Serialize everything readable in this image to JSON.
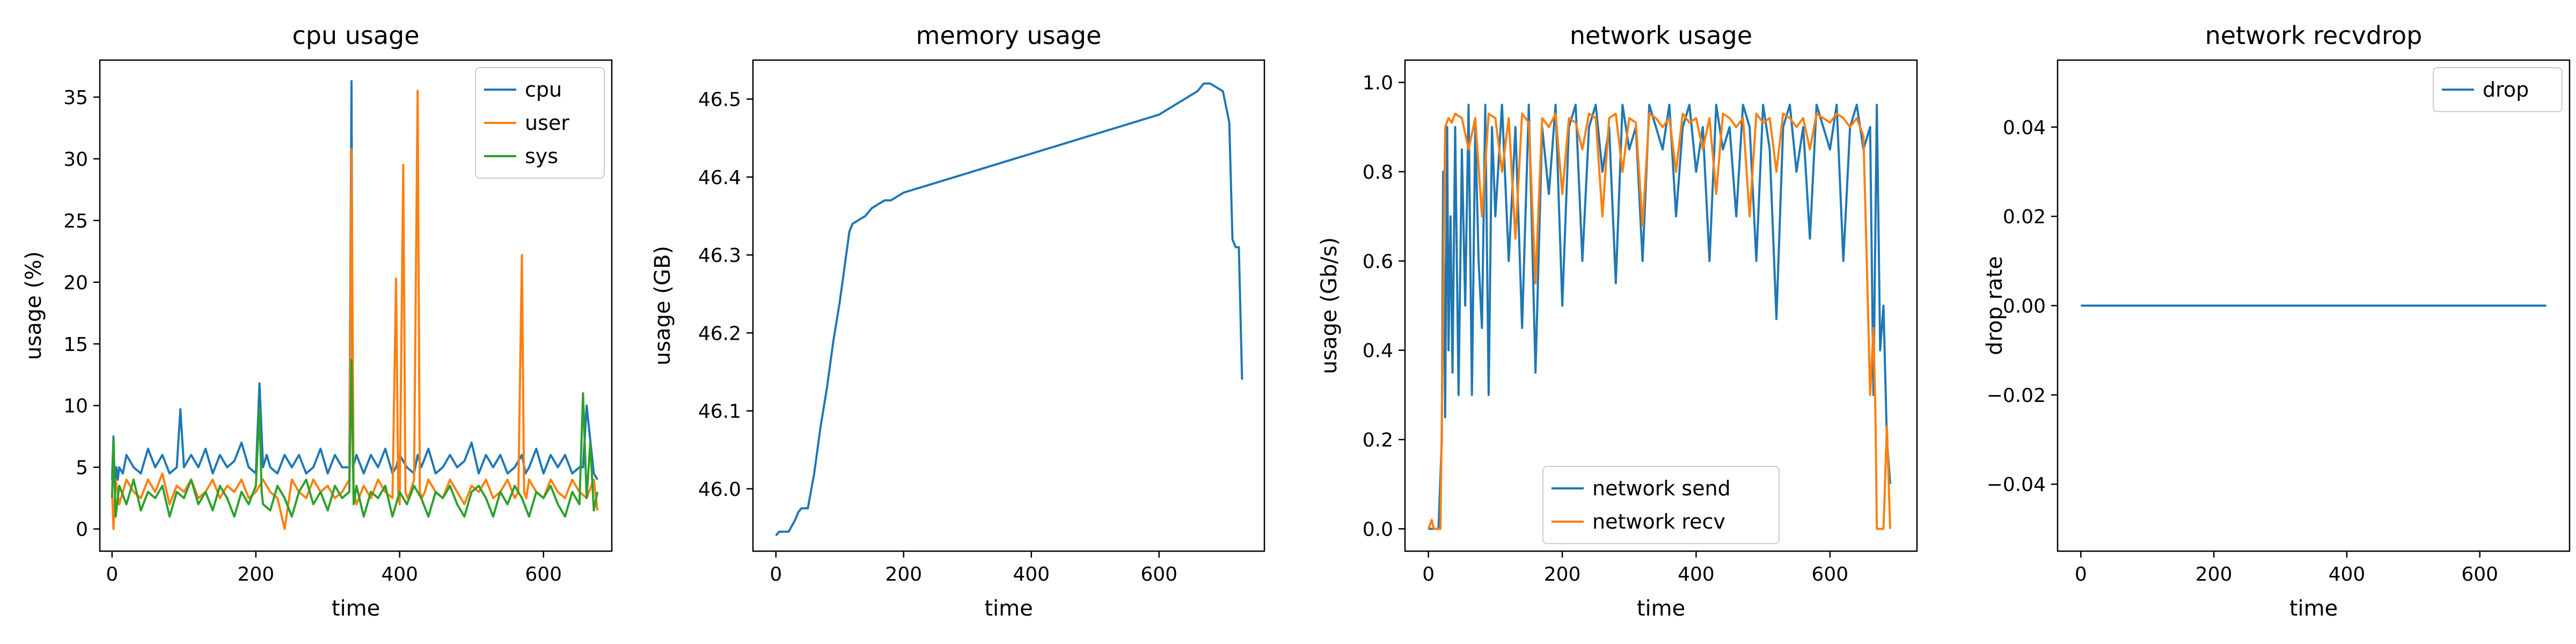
{
  "chart_data": [
    {
      "type": "line",
      "title": "cpu usage",
      "xlabel": "time",
      "ylabel": "usage (%)",
      "xlim": [
        -17,
        695
      ],
      "ylim": [
        -1.8,
        38
      ],
      "xticks": [
        0,
        200,
        400,
        600
      ],
      "yticks": [
        0,
        5,
        10,
        15,
        20,
        25,
        30,
        35
      ],
      "legend": "top-right",
      "series": [
        {
          "name": "cpu",
          "color": "#1f77b4",
          "x": [
            0,
            2,
            4,
            6,
            8,
            10,
            15,
            20,
            30,
            40,
            50,
            60,
            70,
            80,
            90,
            95,
            100,
            110,
            120,
            130,
            140,
            150,
            160,
            170,
            180,
            190,
            200,
            205,
            210,
            215,
            220,
            230,
            240,
            250,
            260,
            270,
            280,
            290,
            300,
            310,
            320,
            330,
            333,
            335,
            340,
            350,
            360,
            370,
            380,
            390,
            395,
            400,
            410,
            420,
            425,
            430,
            440,
            450,
            460,
            470,
            480,
            490,
            500,
            510,
            520,
            530,
            540,
            550,
            560,
            570,
            575,
            580,
            590,
            600,
            610,
            620,
            630,
            640,
            650,
            655,
            660,
            670,
            675
          ],
          "y": [
            4,
            7.5,
            3,
            5,
            4,
            5,
            4.5,
            6,
            5,
            4.5,
            6.5,
            5,
            6,
            4.5,
            5,
            9.7,
            5,
            6,
            5,
            6.5,
            4.5,
            6,
            5,
            5.5,
            7,
            5,
            4.5,
            11.8,
            5,
            6,
            5,
            4.5,
            6,
            5,
            6,
            4.5,
            5,
            6.5,
            4.5,
            6,
            5,
            5,
            36.3,
            5,
            6,
            4.5,
            6,
            5,
            6.5,
            4.5,
            5,
            6,
            5,
            4.5,
            6,
            5,
            6.5,
            4.5,
            5,
            6,
            5,
            5.5,
            7,
            4.5,
            6,
            5,
            6,
            4.5,
            5,
            6,
            4.5,
            5,
            6.5,
            4.5,
            6,
            5,
            6,
            4.5,
            5,
            5,
            10,
            4.5,
            4
          ]
        },
        {
          "name": "user",
          "color": "#ff7f0e",
          "x": [
            0,
            2,
            5,
            10,
            20,
            30,
            40,
            50,
            60,
            70,
            80,
            90,
            100,
            110,
            120,
            130,
            140,
            150,
            160,
            170,
            180,
            190,
            200,
            210,
            220,
            230,
            240,
            250,
            260,
            270,
            280,
            290,
            300,
            310,
            320,
            330,
            333,
            336,
            340,
            350,
            360,
            370,
            380,
            390,
            395,
            398,
            400,
            405,
            408,
            411,
            415,
            420,
            425,
            428,
            431,
            435,
            440,
            450,
            460,
            470,
            480,
            490,
            500,
            510,
            520,
            530,
            540,
            550,
            560,
            565,
            570,
            573,
            576,
            580,
            590,
            600,
            610,
            620,
            630,
            640,
            650,
            660,
            670,
            675
          ],
          "y": [
            3,
            0,
            4,
            2,
            4,
            3,
            2.5,
            4,
            3,
            4.5,
            2,
            3.5,
            3,
            4,
            2.5,
            3,
            4,
            2.5,
            3.5,
            3,
            4,
            2.5,
            3,
            4,
            3,
            2.5,
            0,
            4,
            3,
            2.5,
            4,
            3,
            3.5,
            2.5,
            3,
            4,
            30.8,
            3,
            2,
            3.5,
            2.5,
            4,
            3,
            2.5,
            20.3,
            3,
            2,
            29.5,
            3,
            2.5,
            3,
            4,
            35.5,
            3,
            2.5,
            3,
            4,
            3,
            2.5,
            4,
            3,
            2,
            3.5,
            3,
            4,
            2.5,
            3,
            4,
            2.5,
            3,
            22.2,
            3,
            2.5,
            4,
            3,
            2.5,
            4,
            3,
            2.5,
            4,
            3,
            2.5,
            4,
            1.5
          ]
        },
        {
          "name": "sys",
          "color": "#2ca02c",
          "x": [
            0,
            2,
            5,
            10,
            20,
            30,
            40,
            50,
            60,
            70,
            80,
            90,
            100,
            110,
            120,
            130,
            140,
            150,
            160,
            170,
            180,
            190,
            200,
            205,
            208,
            210,
            220,
            230,
            240,
            250,
            260,
            270,
            280,
            290,
            300,
            310,
            320,
            330,
            333,
            336,
            340,
            350,
            360,
            370,
            380,
            390,
            400,
            410,
            420,
            430,
            440,
            450,
            460,
            470,
            480,
            490,
            500,
            510,
            520,
            530,
            540,
            550,
            560,
            570,
            580,
            590,
            600,
            610,
            620,
            630,
            640,
            650,
            655,
            660,
            665,
            670,
            675
          ],
          "y": [
            2.5,
            7.2,
            1,
            3.5,
            2,
            4,
            1.5,
            3,
            2.5,
            3.5,
            1,
            3,
            2.5,
            4,
            2,
            3,
            1.5,
            3.5,
            2.5,
            1,
            3,
            2,
            3.5,
            9.8,
            3,
            2,
            1.5,
            3.5,
            2.5,
            1,
            3,
            4,
            2,
            3,
            1.5,
            3.5,
            2.5,
            3,
            13.7,
            2,
            3.5,
            1,
            3,
            2.5,
            3.5,
            1,
            3,
            2,
            3.5,
            2.5,
            1,
            3,
            2.5,
            3.5,
            2,
            1,
            3,
            3.5,
            2.5,
            1,
            3,
            2,
            3.5,
            2.5,
            1,
            3,
            2.5,
            3.5,
            2,
            1,
            3,
            2,
            11,
            2.5,
            7,
            1.5,
            3
          ]
        }
      ]
    },
    {
      "type": "line",
      "title": "memory usage",
      "xlabel": "time",
      "ylabel": "usage (GB)",
      "xlim": [
        -36,
        765
      ],
      "ylim": [
        45.92,
        46.55
      ],
      "xticks": [
        0,
        200,
        400,
        600
      ],
      "yticks": [
        46.0,
        46.1,
        46.2,
        46.3,
        46.4,
        46.5
      ],
      "series": [
        {
          "name": "",
          "color": "#1f77b4",
          "x": [
            0,
            5,
            10,
            20,
            30,
            35,
            40,
            50,
            60,
            70,
            80,
            90,
            100,
            105,
            110,
            115,
            120,
            130,
            140,
            150,
            160,
            170,
            180,
            190,
            200,
            220,
            240,
            260,
            280,
            300,
            320,
            340,
            360,
            380,
            400,
            420,
            440,
            460,
            480,
            500,
            520,
            540,
            560,
            580,
            600,
            620,
            640,
            660,
            670,
            680,
            690,
            700,
            710,
            715,
            720,
            725,
            730
          ],
          "y": [
            45.94,
            45.945,
            45.945,
            45.945,
            45.96,
            45.97,
            45.975,
            45.975,
            46.02,
            46.08,
            46.13,
            46.19,
            46.24,
            46.27,
            46.3,
            46.33,
            46.34,
            46.345,
            46.35,
            46.36,
            46.365,
            46.37,
            46.37,
            46.375,
            46.38,
            46.385,
            46.39,
            46.395,
            46.4,
            46.405,
            46.41,
            46.415,
            46.42,
            46.425,
            46.43,
            46.435,
            46.44,
            46.445,
            46.45,
            46.455,
            46.46,
            46.465,
            46.47,
            46.475,
            46.48,
            46.49,
            46.5,
            46.51,
            46.52,
            46.52,
            46.515,
            46.51,
            46.47,
            46.32,
            46.31,
            46.31,
            46.14
          ]
        }
      ]
    },
    {
      "type": "line",
      "title": "network usage",
      "xlabel": "time",
      "ylabel": "usage (Gb/s)",
      "xlim": [
        -35,
        730
      ],
      "ylim": [
        -0.05,
        1.05
      ],
      "xticks": [
        0,
        200,
        400,
        600
      ],
      "yticks": [
        0.0,
        0.2,
        0.4,
        0.6,
        0.8,
        1.0
      ],
      "legend": "bottom-center",
      "series": [
        {
          "name": "network send",
          "color": "#1f77b4",
          "x": [
            0,
            10,
            15,
            20,
            22,
            25,
            28,
            30,
            33,
            36,
            40,
            45,
            50,
            55,
            60,
            65,
            70,
            75,
            80,
            85,
            90,
            95,
            100,
            110,
            120,
            130,
            140,
            150,
            160,
            170,
            180,
            190,
            200,
            210,
            220,
            230,
            240,
            250,
            260,
            270,
            280,
            290,
            300,
            310,
            320,
            330,
            340,
            350,
            360,
            370,
            380,
            390,
            400,
            410,
            420,
            430,
            440,
            450,
            460,
            470,
            480,
            490,
            500,
            510,
            520,
            530,
            540,
            550,
            560,
            570,
            580,
            590,
            600,
            610,
            620,
            630,
            640,
            650,
            660,
            665,
            670,
            675,
            680,
            685,
            690
          ],
          "y": [
            0,
            0,
            0,
            0.2,
            0.8,
            0.25,
            0.9,
            0.4,
            0.7,
            0.35,
            0.9,
            0.3,
            0.85,
            0.5,
            0.95,
            0.3,
            0.9,
            0.6,
            0.45,
            0.95,
            0.3,
            0.9,
            0.7,
            0.95,
            0.6,
            0.9,
            0.45,
            0.95,
            0.35,
            0.9,
            0.75,
            0.95,
            0.5,
            0.9,
            0.95,
            0.6,
            0.9,
            0.95,
            0.8,
            0.9,
            0.55,
            0.95,
            0.85,
            0.9,
            0.6,
            0.95,
            0.9,
            0.85,
            0.95,
            0.7,
            0.9,
            0.95,
            0.8,
            0.9,
            0.6,
            0.95,
            0.85,
            0.9,
            0.7,
            0.95,
            0.9,
            0.6,
            0.95,
            0.85,
            0.47,
            0.9,
            0.95,
            0.8,
            0.9,
            0.65,
            0.95,
            0.9,
            0.85,
            0.95,
            0.6,
            0.9,
            0.95,
            0.85,
            0.9,
            0.3,
            0.95,
            0.4,
            0.5,
            0.2,
            0.1
          ]
        },
        {
          "name": "network recv",
          "color": "#ff7f0e",
          "x": [
            0,
            5,
            8,
            12,
            18,
            22,
            25,
            30,
            35,
            40,
            50,
            60,
            70,
            80,
            90,
            100,
            110,
            120,
            130,
            140,
            150,
            160,
            170,
            180,
            190,
            200,
            210,
            220,
            230,
            240,
            250,
            260,
            270,
            280,
            290,
            300,
            310,
            320,
            330,
            340,
            350,
            360,
            370,
            380,
            390,
            400,
            410,
            420,
            430,
            440,
            450,
            460,
            470,
            480,
            490,
            500,
            510,
            520,
            530,
            540,
            550,
            560,
            570,
            580,
            590,
            600,
            610,
            620,
            630,
            640,
            650,
            655,
            660,
            665,
            668,
            670,
            675,
            680,
            685,
            690
          ],
          "y": [
            0,
            0.02,
            0,
            0,
            0,
            0.5,
            0.9,
            0.92,
            0.91,
            0.93,
            0.92,
            0.85,
            0.92,
            0.7,
            0.93,
            0.92,
            0.8,
            0.92,
            0.65,
            0.93,
            0.91,
            0.55,
            0.92,
            0.9,
            0.93,
            0.75,
            0.92,
            0.91,
            0.85,
            0.93,
            0.92,
            0.7,
            0.92,
            0.93,
            0.8,
            0.92,
            0.91,
            0.68,
            0.93,
            0.92,
            0.9,
            0.92,
            0.8,
            0.93,
            0.91,
            0.92,
            0.85,
            0.92,
            0.75,
            0.93,
            0.92,
            0.9,
            0.92,
            0.7,
            0.93,
            0.91,
            0.92,
            0.8,
            0.93,
            0.92,
            0.9,
            0.92,
            0.85,
            0.93,
            0.92,
            0.91,
            0.93,
            0.92,
            0.9,
            0.92,
            0.88,
            0.6,
            0.3,
            0.45,
            0.25,
            0,
            0,
            0,
            0.23,
            0
          ]
        }
      ]
    },
    {
      "type": "line",
      "title": "network recvdrop",
      "xlabel": "time",
      "ylabel": "drop rate",
      "xlim": [
        -35,
        735
      ],
      "ylim": [
        -0.055,
        0.055
      ],
      "xticks": [
        0,
        200,
        400,
        600
      ],
      "yticks": [
        -0.04,
        -0.02,
        0.0,
        0.02,
        0.04
      ],
      "ytick_labels": [
        "−0.04",
        "−0.02",
        "0.00",
        "0.02",
        "0.04"
      ],
      "legend": "top-right",
      "series": [
        {
          "name": "drop",
          "color": "#1f77b4",
          "x": [
            0,
            700
          ],
          "y": [
            0,
            0
          ]
        }
      ]
    }
  ]
}
